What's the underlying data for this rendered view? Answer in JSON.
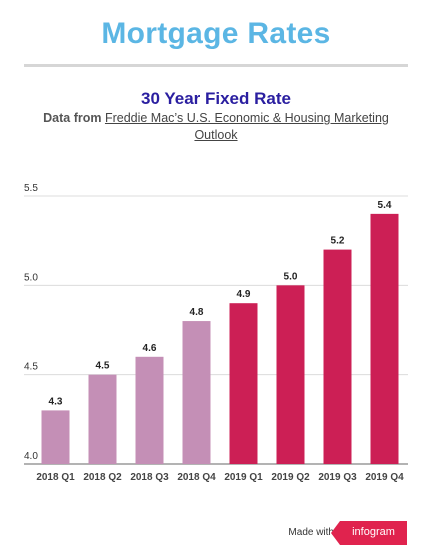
{
  "header": {
    "title": "Mortgage Rates"
  },
  "colors": {
    "title": "#5bb6e4",
    "subtitle_title": "#2a1ea0",
    "bar_2018": "#c48fb6",
    "bar_2019": "#cc1f55",
    "brand": "#e0234e"
  },
  "chart_data": {
    "type": "bar",
    "title": "30 Year Fixed Rate",
    "subtitle_prefix": "Data from ",
    "subtitle_link": "Freddie Mac’s U.S. Economic & Housing Marketing Outlook",
    "categories": [
      "2018 Q1",
      "2018 Q2",
      "2018 Q3",
      "2018 Q4",
      "2019 Q1",
      "2019 Q2",
      "2019 Q3",
      "2019 Q4"
    ],
    "values": [
      4.3,
      4.5,
      4.6,
      4.8,
      4.9,
      5.0,
      5.2,
      5.4
    ],
    "value_labels": [
      "4.3",
      "4.5",
      "4.6",
      "4.8",
      "4.9",
      "5.0",
      "5.2",
      "5.4"
    ],
    "bar_colors": [
      "#c48fb6",
      "#c48fb6",
      "#c48fb6",
      "#c48fb6",
      "#cc1f55",
      "#cc1f55",
      "#cc1f55",
      "#cc1f55"
    ],
    "ylim": [
      4.0,
      5.5
    ],
    "yticks": [
      4.0,
      4.5,
      5.0,
      5.5
    ],
    "ytick_labels": [
      "4.0",
      "4.5",
      "5.0",
      "5.5"
    ],
    "xlabel": "",
    "ylabel": "",
    "grid": true,
    "legend": "none"
  },
  "footer": {
    "made_with": "Made with",
    "brand": "infogram"
  }
}
